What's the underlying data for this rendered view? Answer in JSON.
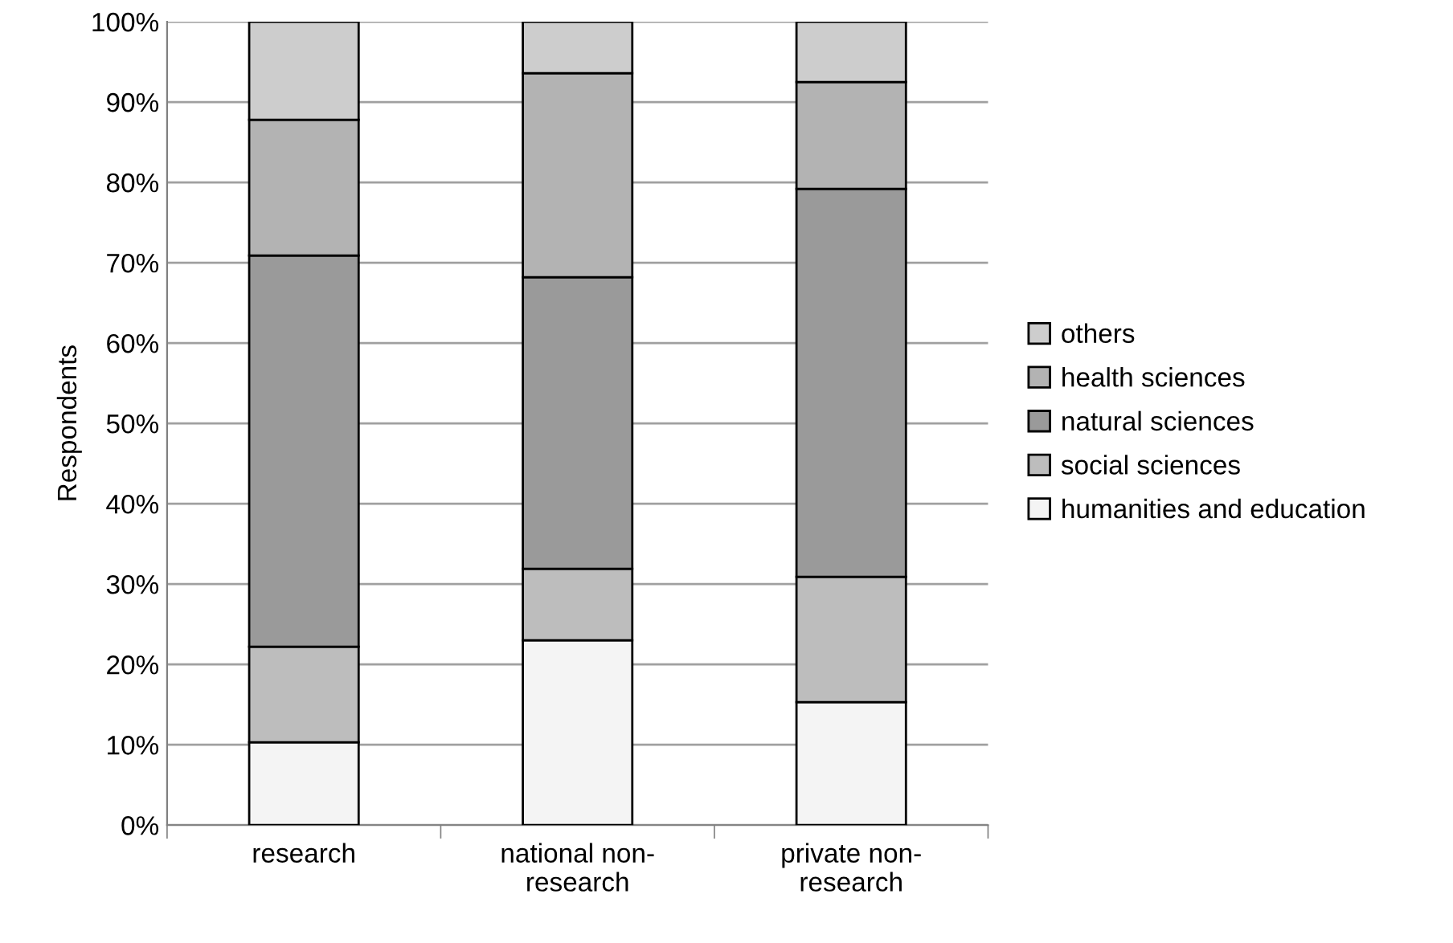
{
  "chart_data": {
    "type": "bar",
    "stacked": true,
    "ylabel": "Respondents",
    "categories": [
      "research",
      "national non-\nresearch",
      "private non-\nresearch"
    ],
    "series": [
      {
        "name": "humanities and education",
        "color": "#f4f4f4",
        "values": [
          10.3,
          23.0,
          15.3
        ]
      },
      {
        "name": "social sciences",
        "color": "#bdbdbd",
        "values": [
          11.9,
          8.9,
          15.6
        ]
      },
      {
        "name": "natural sciences",
        "color": "#9a9a9a",
        "values": [
          48.7,
          36.3,
          48.3
        ]
      },
      {
        "name": "health sciences",
        "color": "#b3b3b3",
        "values": [
          16.9,
          25.4,
          13.3
        ]
      },
      {
        "name": "others",
        "color": "#cdcdcd",
        "values": [
          12.2,
          6.4,
          7.5
        ]
      }
    ],
    "ylim": [
      0,
      100
    ],
    "yticks": [
      {
        "value": 0,
        "label": "0%"
      },
      {
        "value": 10,
        "label": "10%"
      },
      {
        "value": 20,
        "label": "20%"
      },
      {
        "value": 30,
        "label": "30%"
      },
      {
        "value": 40,
        "label": "40%"
      },
      {
        "value": 50,
        "label": "50%"
      },
      {
        "value": 60,
        "label": "60%"
      },
      {
        "value": 70,
        "label": "70%"
      },
      {
        "value": 80,
        "label": "80%"
      },
      {
        "value": 90,
        "label": "90%"
      },
      {
        "value": 100,
        "label": "100%"
      }
    ],
    "grid": "y",
    "legend": "right"
  }
}
